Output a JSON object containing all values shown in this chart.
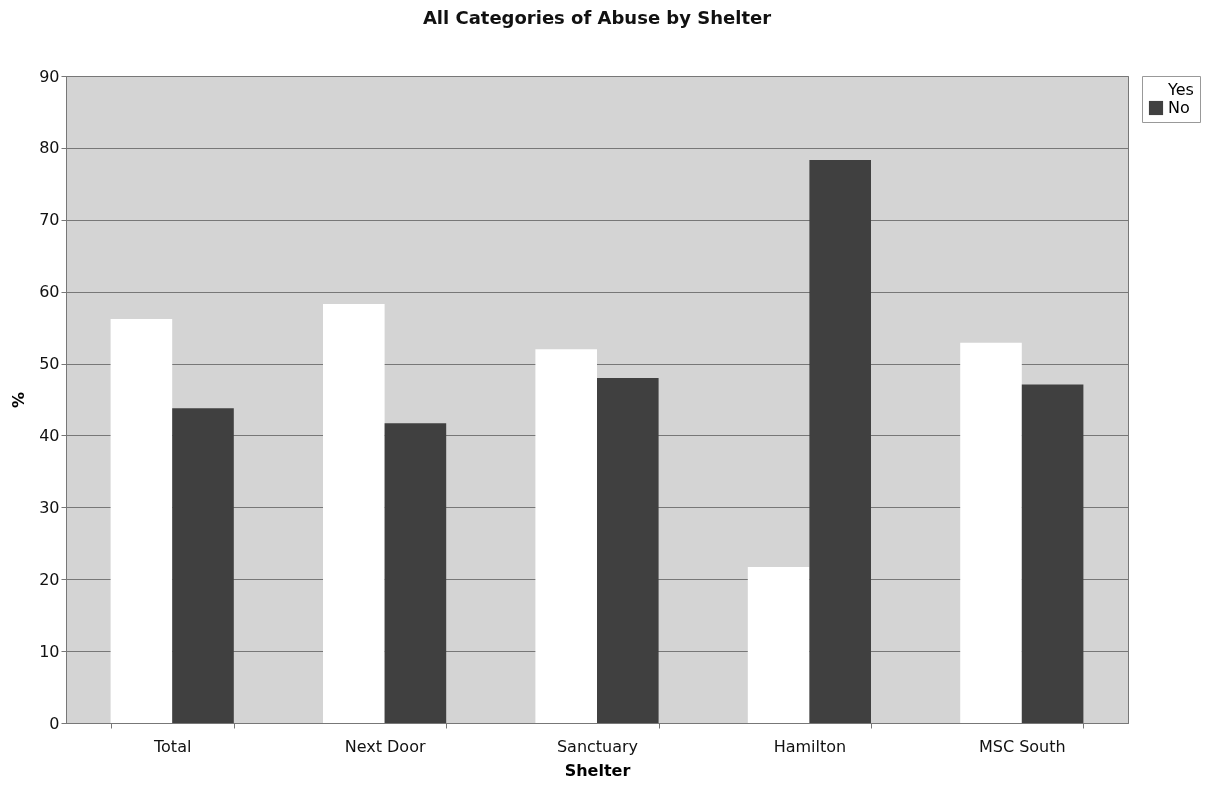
{
  "chart_data": {
    "type": "bar",
    "title": "All Categories of Abuse by Shelter",
    "xlabel": "Shelter",
    "ylabel": "%",
    "categories": [
      "Total",
      "Next Door",
      "Sanctuary",
      "Hamilton",
      "MSC South"
    ],
    "series": [
      {
        "name": "Yes",
        "color": "#ffffff",
        "values": [
          56.2,
          58.3,
          52.0,
          21.7,
          52.9
        ]
      },
      {
        "name": "No",
        "color": "#404040",
        "values": [
          43.8,
          41.7,
          48.0,
          78.3,
          47.1
        ]
      }
    ],
    "ylim": [
      0,
      90
    ],
    "yticks": [
      0,
      10,
      20,
      30,
      40,
      50,
      60,
      70,
      80,
      90
    ],
    "grid": "y",
    "legend": "right"
  }
}
